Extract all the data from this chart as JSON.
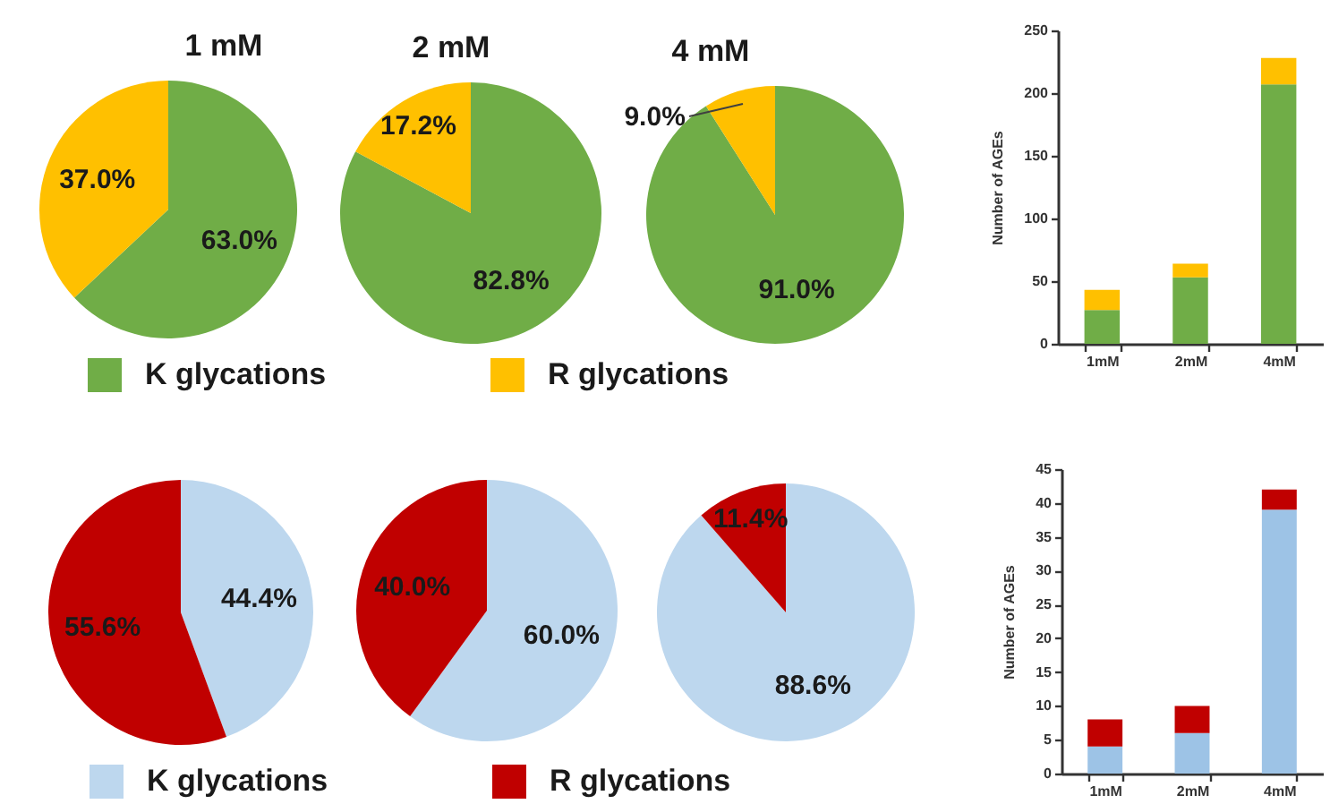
{
  "chart_data": [
    {
      "type": "pie",
      "title": "1 mM",
      "categories": [
        "K glycations",
        "R glycations"
      ],
      "values": [
        63.0,
        37.0
      ],
      "colors": [
        "#70ad47",
        "#ffc000"
      ],
      "value_labels": [
        "63.0%",
        "37.0%"
      ],
      "legend": "bottom"
    },
    {
      "type": "pie",
      "title": "2 mM",
      "categories": [
        null,
        null
      ],
      "values": [
        82.8,
        17.2
      ],
      "colors": [
        "#70ad47",
        "#ffc000"
      ],
      "value_labels": [
        "82.8%",
        "17.2%"
      ]
    },
    {
      "type": "pie",
      "title": "4 mM",
      "categories": [
        null,
        null
      ],
      "values": [
        91.0,
        9.0
      ],
      "colors": [
        "#70ad47",
        "#ffc000"
      ],
      "value_labels": [
        "91.0%",
        "9.0%"
      ]
    },
    {
      "type": "bar",
      "categories": [
        "1mM",
        "2mM",
        "4mM"
      ],
      "stacked": true,
      "series": [
        {
          "color": "#70ad47",
          "values": [
            27,
            53,
            207
          ]
        },
        {
          "color": "#ffc000",
          "values": [
            16,
            11,
            21
          ]
        }
      ],
      "ylim": [
        0,
        250
      ],
      "yticks": [
        0,
        50,
        100,
        150,
        200,
        250
      ],
      "ylabel": "Number of AGEs"
    },
    {
      "type": "pie",
      "categories": [
        "K glycations",
        "R glycations"
      ],
      "values": [
        44.4,
        55.6
      ],
      "colors": [
        "#bdd7ee",
        "#c00000"
      ],
      "value_labels": [
        "44.4%",
        "55.6%"
      ],
      "legend": "bottom"
    },
    {
      "type": "pie",
      "categories": [
        null,
        null
      ],
      "values": [
        60.0,
        40.0
      ],
      "colors": [
        "#bdd7ee",
        "#c00000"
      ],
      "value_labels": [
        "60.0%",
        "40.0%"
      ]
    },
    {
      "type": "pie",
      "categories": [
        null,
        null
      ],
      "values": [
        88.6,
        11.4
      ],
      "colors": [
        "#bdd7ee",
        "#c00000"
      ],
      "value_labels": [
        "88.6%",
        "11.4%"
      ]
    },
    {
      "type": "bar",
      "categories": [
        "1mM",
        "2mM",
        "4mM"
      ],
      "stacked": true,
      "series": [
        {
          "color": "#9dc3e6",
          "values": [
            4,
            6,
            39
          ]
        },
        {
          "color": "#c00000",
          "values": [
            4,
            4,
            3
          ]
        }
      ],
      "ylim": [
        0,
        45
      ],
      "yticks": [
        0,
        5,
        10,
        15,
        20,
        25,
        30,
        35,
        40,
        45
      ],
      "ylabel": "Number of AGEs"
    }
  ]
}
